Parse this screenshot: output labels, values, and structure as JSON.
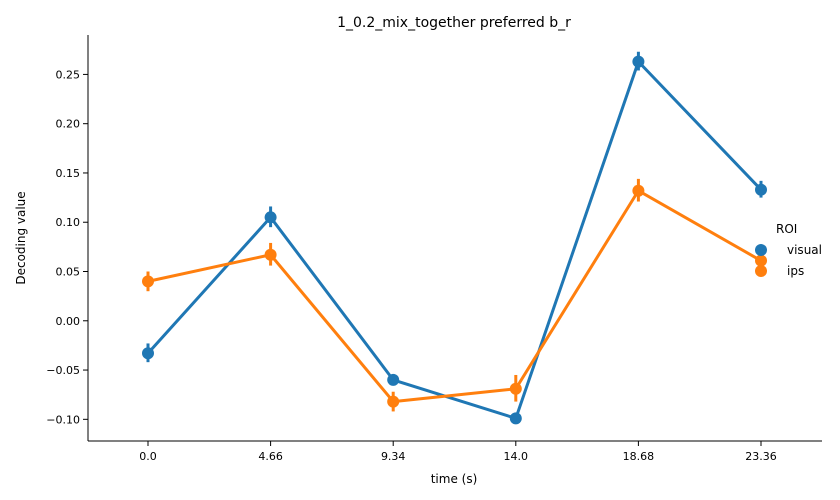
{
  "chart_data": {
    "type": "line",
    "title": "1_0.2_mix_together preferred b_r",
    "xlabel": "time (s)",
    "ylabel": "Decoding value",
    "categories": [
      "0.0",
      "4.66",
      "9.34",
      "14.0",
      "18.68",
      "23.36"
    ],
    "y_ticks": [
      "0.25",
      "0.20",
      "0.15",
      "0.10",
      "0.05",
      "0.00",
      "−0.05",
      "−0.10"
    ],
    "ylim": [
      -0.122,
      0.29
    ],
    "grid": false,
    "legend_title": "ROI",
    "legend_position": "right",
    "series": [
      {
        "name": "visual",
        "color": "#1f77b4",
        "values": [
          -0.033,
          0.105,
          -0.06,
          -0.099,
          0.263,
          0.133
        ],
        "ci_low": [
          -0.042,
          0.095,
          -0.064,
          -0.103,
          0.254,
          0.125
        ],
        "ci_high": [
          -0.023,
          0.116,
          -0.056,
          -0.095,
          0.273,
          0.142
        ]
      },
      {
        "name": "ips",
        "color": "#ff7f0e",
        "values": [
          0.04,
          0.067,
          -0.082,
          -0.069,
          0.132,
          0.061
        ],
        "ci_low": [
          0.03,
          0.056,
          -0.092,
          -0.082,
          0.121,
          0.051
        ],
        "ci_high": [
          0.05,
          0.079,
          -0.072,
          -0.055,
          0.144,
          0.071
        ]
      }
    ]
  }
}
